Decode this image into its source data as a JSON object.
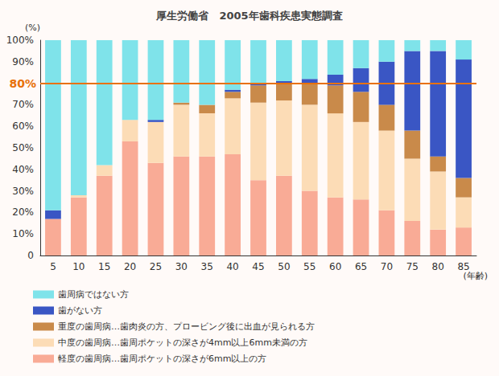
{
  "chart_data": {
    "type": "bar",
    "title": "厚生労働省　2005年歯科疾患実態調査",
    "x_label": "(年齢)",
    "y_label": "(%)",
    "stacked": true,
    "legend": "bottom",
    "grid": false,
    "data_labels": false,
    "categories": [
      "5",
      "10",
      "15",
      "20",
      "25",
      "30",
      "35",
      "40",
      "45",
      "50",
      "55",
      "60",
      "65",
      "70",
      "75",
      "80",
      "85"
    ],
    "series": [
      {
        "name": "軽度の歯周病…歯周ポケットの深さが6mm以上の方",
        "color": "#f9ab96",
        "values": [
          17,
          27,
          37,
          53,
          43,
          46,
          46,
          47,
          35,
          37,
          30,
          27,
          26,
          21,
          16,
          12,
          13
        ]
      },
      {
        "name": "中度の歯周病…歯周ポケットの深さが4mm以上6mm未満の方",
        "color": "#fcdcb6",
        "values": [
          0,
          1,
          5,
          10,
          19,
          24,
          20,
          26,
          36,
          35,
          40,
          39,
          36,
          37,
          29,
          27,
          14
        ]
      },
      {
        "name": "重度の歯周病…歯肉炎の方、プロービング後に出血が見られる方",
        "color": "#c98a4a",
        "values": [
          0,
          0,
          0,
          0,
          0,
          1,
          4,
          3,
          8,
          8,
          10,
          13,
          14,
          12,
          13,
          7,
          9
        ]
      },
      {
        "name": "歯がない方",
        "color": "#3a56c4",
        "values": [
          4,
          0,
          0,
          0,
          1,
          0,
          0,
          1,
          1,
          1,
          2,
          5,
          11,
          20,
          37,
          49,
          55
        ]
      },
      {
        "name": "歯周病ではない方",
        "color": "#7fe3ea",
        "values": [
          79,
          72,
          58,
          37,
          37,
          29,
          30,
          23,
          20,
          19,
          18,
          16,
          13,
          10,
          5,
          5,
          9
        ]
      }
    ],
    "ylim": [
      0,
      100
    ],
    "yticks": [
      0,
      {
        "value": 10,
        "label": "10%"
      },
      {
        "value": 20,
        "label": "20%"
      },
      {
        "value": 30,
        "label": "30%"
      },
      {
        "value": 40,
        "label": "40%"
      },
      {
        "value": 50,
        "label": "50%"
      },
      {
        "value": 60,
        "label": "60%"
      },
      {
        "value": 70,
        "label": "70%"
      },
      {
        "value": 90,
        "label": "90%"
      },
      {
        "value": 100,
        "label": "100%"
      }
    ],
    "reference_lines": [
      {
        "value": 80,
        "label": "80%",
        "color": "#e8710a"
      }
    ]
  }
}
